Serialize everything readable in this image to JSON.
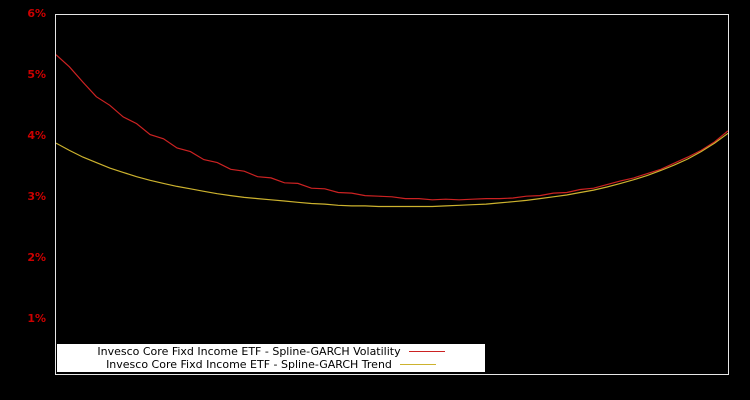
{
  "page": {
    "background_color": "#000000",
    "plot_border_color": "#e6e6e6",
    "axis_label_color": "#cc0000"
  },
  "chart_data": {
    "type": "line",
    "title": "",
    "xlabel": "",
    "ylabel": "",
    "grid": false,
    "legend_position": "bottom-left-inside",
    "ylim": [
      0,
      6
    ],
    "y_ticks": [
      {
        "value": 6,
        "label": "6%"
      },
      {
        "value": 5,
        "label": "5%"
      },
      {
        "value": 4,
        "label": "4%"
      },
      {
        "value": 3,
        "label": "3%"
      },
      {
        "value": 2,
        "label": "2%"
      },
      {
        "value": 1,
        "label": "1%"
      }
    ],
    "x_range": [
      0,
      1
    ],
    "series": [
      {
        "name": "Invesco Core Fixd Income ETF - Spline-GARCH Volatility",
        "color": "#cc2222",
        "values": [
          5.35,
          5.15,
          4.9,
          4.66,
          4.52,
          4.33,
          4.22,
          4.04,
          3.97,
          3.82,
          3.76,
          3.63,
          3.58,
          3.47,
          3.44,
          3.35,
          3.33,
          3.25,
          3.24,
          3.16,
          3.15,
          3.09,
          3.08,
          3.04,
          3.03,
          3.02,
          2.99,
          2.99,
          2.97,
          2.98,
          2.97,
          2.98,
          2.99,
          2.99,
          3.0,
          3.03,
          3.04,
          3.08,
          3.09,
          3.14,
          3.16,
          3.22,
          3.28,
          3.33,
          3.4,
          3.47,
          3.57,
          3.67,
          3.78,
          3.92,
          4.1
        ]
      },
      {
        "name": "Invesco Core Fixd Income ETF - Spline-GARCH Trend",
        "color": "#ccb22e",
        "values": [
          3.9,
          3.78,
          3.67,
          3.58,
          3.49,
          3.42,
          3.35,
          3.29,
          3.24,
          3.19,
          3.15,
          3.11,
          3.07,
          3.04,
          3.01,
          2.99,
          2.97,
          2.95,
          2.93,
          2.91,
          2.9,
          2.88,
          2.87,
          2.87,
          2.86,
          2.86,
          2.86,
          2.86,
          2.86,
          2.87,
          2.88,
          2.89,
          2.9,
          2.92,
          2.94,
          2.96,
          2.99,
          3.02,
          3.05,
          3.09,
          3.13,
          3.18,
          3.24,
          3.3,
          3.37,
          3.45,
          3.54,
          3.64,
          3.76,
          3.9,
          4.06
        ]
      }
    ]
  }
}
